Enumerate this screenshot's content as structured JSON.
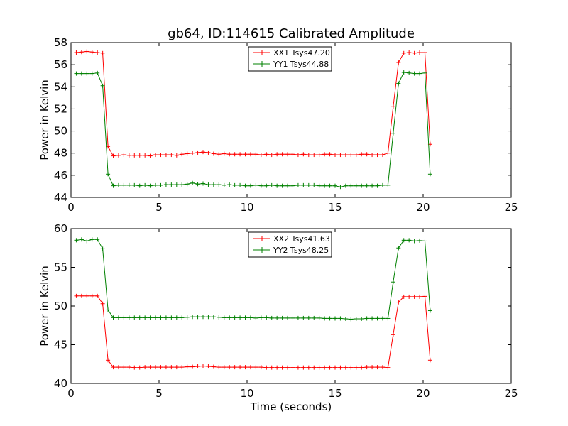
{
  "figure": {
    "title": "gb64, ID:114615 Calibrated Amplitude"
  },
  "chart_data": [
    {
      "type": "line",
      "title": "gb64, ID:114615 Calibrated Amplitude",
      "xlabel": "",
      "ylabel": "Power in Kelvin",
      "xlim": [
        0,
        25
      ],
      "ylim": [
        44,
        58
      ],
      "xticks": [
        "0",
        "5",
        "10",
        "15",
        "20",
        "25"
      ],
      "yticks": [
        "44",
        "46",
        "48",
        "50",
        "52",
        "54",
        "56",
        "58"
      ],
      "grid": false,
      "legend_position": "top-center",
      "series": [
        {
          "name": "XX1 Tsys47.20",
          "color": "#ff0000",
          "x": [
            0.3,
            0.6,
            0.9,
            1.2,
            1.5,
            1.8,
            2.1,
            2.4,
            2.7,
            3.0,
            3.3,
            3.6,
            3.9,
            4.2,
            4.5,
            4.8,
            5.1,
            5.4,
            5.7,
            6.0,
            6.3,
            6.6,
            6.9,
            7.2,
            7.5,
            7.8,
            8.1,
            8.4,
            8.7,
            9.0,
            9.3,
            9.6,
            9.9,
            10.2,
            10.5,
            10.8,
            11.1,
            11.4,
            11.7,
            12.0,
            12.3,
            12.6,
            12.9,
            13.2,
            13.5,
            13.8,
            14.1,
            14.4,
            14.7,
            15.0,
            15.3,
            15.6,
            15.9,
            16.2,
            16.5,
            16.8,
            17.1,
            17.4,
            17.7,
            18.0,
            18.3,
            18.6,
            18.9,
            19.2,
            19.5,
            19.8,
            20.1,
            20.4
          ],
          "y": [
            57.1,
            57.15,
            57.2,
            57.15,
            57.1,
            57.05,
            48.6,
            47.75,
            47.8,
            47.85,
            47.8,
            47.8,
            47.8,
            47.8,
            47.75,
            47.85,
            47.85,
            47.85,
            47.85,
            47.8,
            47.9,
            47.95,
            48.0,
            48.05,
            48.1,
            48.05,
            47.95,
            47.9,
            47.95,
            47.9,
            47.9,
            47.9,
            47.9,
            47.9,
            47.9,
            47.85,
            47.9,
            47.85,
            47.9,
            47.9,
            47.9,
            47.9,
            47.85,
            47.9,
            47.85,
            47.85,
            47.85,
            47.9,
            47.9,
            47.85,
            47.85,
            47.85,
            47.85,
            47.85,
            47.9,
            47.9,
            47.85,
            47.85,
            47.85,
            48.0,
            52.2,
            56.2,
            57.05,
            57.1,
            57.05,
            57.1,
            57.1,
            48.8
          ]
        },
        {
          "name": "YY1 Tsys44.88",
          "color": "#008000",
          "x": [
            0.3,
            0.6,
            0.9,
            1.2,
            1.5,
            1.8,
            2.1,
            2.4,
            2.7,
            3.0,
            3.3,
            3.6,
            3.9,
            4.2,
            4.5,
            4.8,
            5.1,
            5.4,
            5.7,
            6.0,
            6.3,
            6.6,
            6.9,
            7.2,
            7.5,
            7.8,
            8.1,
            8.4,
            8.7,
            9.0,
            9.3,
            9.6,
            9.9,
            10.2,
            10.5,
            10.8,
            11.1,
            11.4,
            11.7,
            12.0,
            12.3,
            12.6,
            12.9,
            13.2,
            13.5,
            13.8,
            14.1,
            14.4,
            14.7,
            15.0,
            15.3,
            15.6,
            15.9,
            16.2,
            16.5,
            16.8,
            17.1,
            17.4,
            17.7,
            18.0,
            18.3,
            18.6,
            18.9,
            19.2,
            19.5,
            19.8,
            20.1,
            20.4
          ],
          "y": [
            55.2,
            55.2,
            55.2,
            55.2,
            55.25,
            54.1,
            46.1,
            45.05,
            45.1,
            45.1,
            45.1,
            45.1,
            45.05,
            45.1,
            45.05,
            45.1,
            45.1,
            45.15,
            45.15,
            45.15,
            45.15,
            45.2,
            45.3,
            45.2,
            45.25,
            45.15,
            45.15,
            45.15,
            45.1,
            45.15,
            45.1,
            45.1,
            45.05,
            45.05,
            45.1,
            45.05,
            45.05,
            45.1,
            45.05,
            45.05,
            45.05,
            45.05,
            45.1,
            45.1,
            45.1,
            45.1,
            45.05,
            45.05,
            45.05,
            45.05,
            44.95,
            45.05,
            45.05,
            45.05,
            45.05,
            45.05,
            45.05,
            45.05,
            45.1,
            45.1,
            49.8,
            54.3,
            55.3,
            55.25,
            55.2,
            55.2,
            55.25,
            46.1
          ]
        }
      ]
    },
    {
      "type": "line",
      "title": "",
      "xlabel": "Time (seconds)",
      "ylabel": "Power in Kelvin",
      "xlim": [
        0,
        25
      ],
      "ylim": [
        40,
        60
      ],
      "xticks": [
        "0",
        "5",
        "10",
        "15",
        "20",
        "25"
      ],
      "yticks": [
        "40",
        "45",
        "50",
        "55",
        "60"
      ],
      "grid": false,
      "legend_position": "top-center",
      "series": [
        {
          "name": "XX2 Tsys41.63",
          "color": "#ff0000",
          "x": [
            0.3,
            0.6,
            0.9,
            1.2,
            1.5,
            1.8,
            2.1,
            2.4,
            2.7,
            3.0,
            3.3,
            3.6,
            3.9,
            4.2,
            4.5,
            4.8,
            5.1,
            5.4,
            5.7,
            6.0,
            6.3,
            6.6,
            6.9,
            7.2,
            7.5,
            7.8,
            8.1,
            8.4,
            8.7,
            9.0,
            9.3,
            9.6,
            9.9,
            10.2,
            10.5,
            10.8,
            11.1,
            11.4,
            11.7,
            12.0,
            12.3,
            12.6,
            12.9,
            13.2,
            13.5,
            13.8,
            14.1,
            14.4,
            14.7,
            15.0,
            15.3,
            15.6,
            15.9,
            16.2,
            16.5,
            16.8,
            17.1,
            17.4,
            17.7,
            18.0,
            18.3,
            18.6,
            18.9,
            19.2,
            19.5,
            19.8,
            20.1,
            20.4
          ],
          "y": [
            51.3,
            51.3,
            51.3,
            51.3,
            51.3,
            50.3,
            43.0,
            42.1,
            42.1,
            42.1,
            42.1,
            42.05,
            42.05,
            42.1,
            42.1,
            42.1,
            42.1,
            42.1,
            42.1,
            42.1,
            42.1,
            42.15,
            42.15,
            42.2,
            42.25,
            42.2,
            42.15,
            42.1,
            42.1,
            42.1,
            42.1,
            42.1,
            42.1,
            42.1,
            42.1,
            42.1,
            42.05,
            42.05,
            42.05,
            42.05,
            42.05,
            42.05,
            42.05,
            42.05,
            42.05,
            42.05,
            42.05,
            42.05,
            42.05,
            42.05,
            42.05,
            42.05,
            42.05,
            42.05,
            42.05,
            42.1,
            42.1,
            42.1,
            42.1,
            42.05,
            46.3,
            50.5,
            51.2,
            51.2,
            51.2,
            51.2,
            51.25,
            43.0
          ]
        },
        {
          "name": "YY2 Tsys48.25",
          "color": "#008000",
          "x": [
            0.3,
            0.6,
            0.9,
            1.2,
            1.5,
            1.8,
            2.1,
            2.4,
            2.7,
            3.0,
            3.3,
            3.6,
            3.9,
            4.2,
            4.5,
            4.8,
            5.1,
            5.4,
            5.7,
            6.0,
            6.3,
            6.6,
            6.9,
            7.2,
            7.5,
            7.8,
            8.1,
            8.4,
            8.7,
            9.0,
            9.3,
            9.6,
            9.9,
            10.2,
            10.5,
            10.8,
            11.1,
            11.4,
            11.7,
            12.0,
            12.3,
            12.6,
            12.9,
            13.2,
            13.5,
            13.8,
            14.1,
            14.4,
            14.7,
            15.0,
            15.3,
            15.6,
            15.9,
            16.2,
            16.5,
            16.8,
            17.1,
            17.4,
            17.7,
            18.0,
            18.3,
            18.6,
            18.9,
            19.2,
            19.5,
            19.8,
            20.1,
            20.4
          ],
          "y": [
            58.5,
            58.6,
            58.4,
            58.6,
            58.6,
            57.4,
            49.5,
            48.5,
            48.5,
            48.5,
            48.5,
            48.5,
            48.5,
            48.5,
            48.5,
            48.5,
            48.5,
            48.5,
            48.5,
            48.5,
            48.5,
            48.55,
            48.6,
            48.6,
            48.6,
            48.6,
            48.6,
            48.55,
            48.5,
            48.5,
            48.5,
            48.5,
            48.5,
            48.5,
            48.45,
            48.5,
            48.5,
            48.45,
            48.45,
            48.45,
            48.45,
            48.45,
            48.45,
            48.45,
            48.45,
            48.45,
            48.45,
            48.4,
            48.4,
            48.4,
            48.4,
            48.35,
            48.3,
            48.35,
            48.35,
            48.4,
            48.4,
            48.4,
            48.4,
            48.4,
            53.1,
            57.5,
            58.5,
            58.5,
            58.4,
            58.45,
            58.4,
            49.4
          ]
        }
      ]
    }
  ]
}
